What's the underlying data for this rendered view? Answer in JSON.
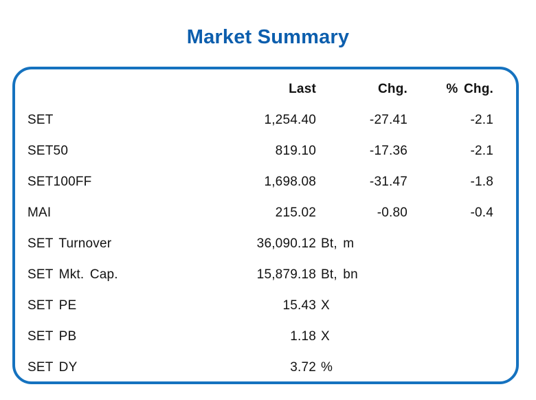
{
  "title": "Market Summary",
  "colors": {
    "title_blue": "#0c5ead",
    "border_blue": "#1572bf",
    "text": "#121212"
  },
  "table": {
    "headers": {
      "last": "Last",
      "chg": "Chg.",
      "pct_chg": "% Chg."
    },
    "rows": [
      {
        "label": "SET",
        "last": "1,254.40",
        "unit": "",
        "chg": "-27.41",
        "pct_chg": "-2.1"
      },
      {
        "label": "SET50",
        "last": "819.10",
        "unit": "",
        "chg": "-17.36",
        "pct_chg": "-2.1"
      },
      {
        "label": "SET100FF",
        "last": "1,698.08",
        "unit": "",
        "chg": "-31.47",
        "pct_chg": "-1.8"
      },
      {
        "label": "MAI",
        "last": "215.02",
        "unit": "",
        "chg": "-0.80",
        "pct_chg": "-0.4"
      },
      {
        "label": "SET Turnover",
        "last": "36,090.12",
        "unit": "Bt, m",
        "chg": "",
        "pct_chg": ""
      },
      {
        "label": "SET Mkt. Cap.",
        "last": "15,879.18",
        "unit": "Bt, bn",
        "chg": "",
        "pct_chg": ""
      },
      {
        "label": "SET PE",
        "last": "15.43",
        "unit": "X",
        "chg": "",
        "pct_chg": ""
      },
      {
        "label": "SET PB",
        "last": "1.18",
        "unit": "X",
        "chg": "",
        "pct_chg": ""
      },
      {
        "label": "SET DY",
        "last": "3.72",
        "unit": "%",
        "chg": "",
        "pct_chg": ""
      }
    ]
  },
  "chart_data": {
    "type": "table",
    "title": "Market Summary",
    "columns": [
      "",
      "Last",
      "Chg.",
      "% Chg."
    ],
    "rows": [
      [
        "SET",
        "1,254.40",
        "-27.41",
        "-2.1"
      ],
      [
        "SET50",
        "819.10",
        "-17.36",
        "-2.1"
      ],
      [
        "SET100FF",
        "1,698.08",
        "-31.47",
        "-1.8"
      ],
      [
        "MAI",
        "215.02",
        "-0.80",
        "-0.4"
      ],
      [
        "SET Turnover",
        "36,090.12 Bt, m",
        "",
        ""
      ],
      [
        "SET Mkt. Cap.",
        "15,879.18 Bt, bn",
        "",
        ""
      ],
      [
        "SET PE",
        "15.43 X",
        "",
        ""
      ],
      [
        "SET PB",
        "1.18 X",
        "",
        ""
      ],
      [
        "SET DY",
        "3.72 %",
        "",
        ""
      ]
    ],
    "values": {
      "SET": 1254.4,
      "SET50": 819.1,
      "SET100FF": 1698.08,
      "MAI": 215.02,
      "SET_Turnover_Bt_m": 36090.12,
      "SET_Mkt_Cap_Bt_bn": 15879.18,
      "SET_PE_X": 15.43,
      "SET_PB_X": 1.18,
      "SET_DY_pct": 3.72
    },
    "layout": {
      "grid": false,
      "legend": false,
      "number_alignment": "right"
    }
  }
}
